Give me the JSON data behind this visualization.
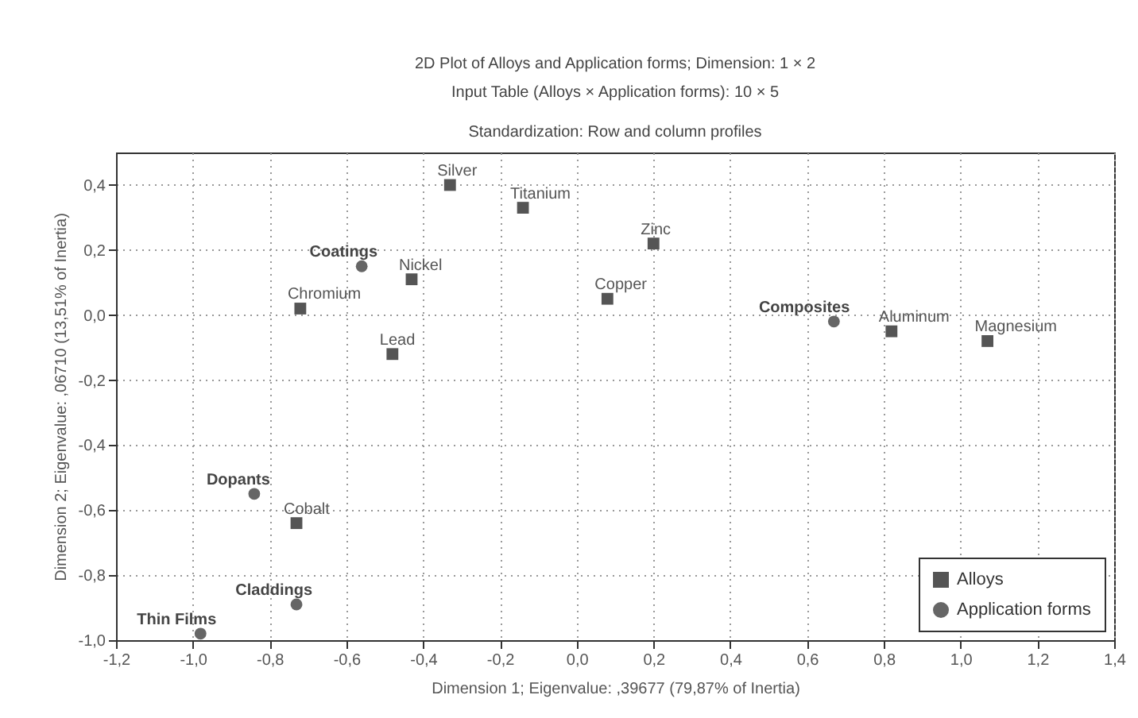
{
  "chart_data": {
    "type": "scatter",
    "title": "2D Plot of Alloys and Application forms; Dimension: 1 × 2",
    "subtitle": "Input Table (Alloys × Application forms): 10 × 5\nStandardization: Row and column profiles",
    "xlabel": "Dimension 1; Eigenvalue: ,39677 (79,87% of Inertia)",
    "ylabel": "Dimension 2; Eigenvalue: ,06710 (13,51% of Inertia)",
    "series": [
      {
        "name": "Alloys",
        "color": "#555555",
        "marker": "square",
        "x": [
          -0.33,
          -0.14,
          0.2,
          -0.43,
          -0.72,
          0.08,
          -0.48,
          0.82,
          1.07,
          -0.73
        ],
        "values": [
          0.4,
          0.33,
          0.22,
          0.11,
          0.02,
          0.05,
          -0.12,
          -0.05,
          -0.08,
          -0.64
        ]
      },
      {
        "name": "Application forms",
        "color": "#666666",
        "marker": "circle",
        "x": [
          -0.56,
          0.67,
          -0.84,
          -0.73,
          -0.98
        ],
        "values": [
          0.15,
          -0.02,
          -0.55,
          -0.89,
          -0.98
        ]
      }
    ],
    "annotations": [
      {
        "text": "Silver",
        "x": -0.33,
        "y": 0.4
      },
      {
        "text": "Titanium",
        "x": -0.14,
        "y": 0.33
      },
      {
        "text": "Zinc",
        "x": 0.2,
        "y": 0.22
      },
      {
        "text": "Nickel",
        "x": -0.43,
        "y": 0.11
      },
      {
        "text": "Chromium",
        "x": -0.72,
        "y": 0.02
      },
      {
        "text": "Copper",
        "x": 0.08,
        "y": 0.05
      },
      {
        "text": "Lead",
        "x": -0.48,
        "y": -0.12
      },
      {
        "text": "Aluminum",
        "x": 0.82,
        "y": -0.05
      },
      {
        "text": "Magnesium",
        "x": 1.07,
        "y": -0.08
      },
      {
        "text": "Cobalt",
        "x": -0.73,
        "y": -0.64
      },
      {
        "text": "Coatings",
        "x": -0.56,
        "y": 0.15
      },
      {
        "text": "Composites",
        "x": 0.67,
        "y": -0.02
      },
      {
        "text": "Dopants",
        "x": -0.84,
        "y": -0.55
      },
      {
        "text": "Claddings",
        "x": -0.73,
        "y": -0.89
      },
      {
        "text": "Thin Films",
        "x": -0.98,
        "y": -0.98
      }
    ],
    "xlim": [
      -1.2,
      1.4
    ],
    "xticks": [
      {
        "value": -1.2,
        "label": "-1,2"
      },
      {
        "value": -1.0,
        "label": "-1,0"
      },
      {
        "value": -0.8,
        "label": "-0,8"
      },
      {
        "value": -0.6,
        "label": "-0,6"
      },
      {
        "value": -0.4,
        "label": "-0,4"
      },
      {
        "value": -0.2,
        "label": "-0,2"
      },
      {
        "value": 0,
        "label": "0,0"
      },
      {
        "value": 0.2,
        "label": "0,2"
      },
      {
        "value": 0.4,
        "label": "0,4"
      },
      {
        "value": 0.6,
        "label": "0,6"
      },
      {
        "value": 0.8,
        "label": "0,8"
      },
      {
        "value": 1.0,
        "label": "1,0"
      },
      {
        "value": 1.2,
        "label": "1,2"
      },
      {
        "value": 1.4,
        "label": "1,4"
      }
    ],
    "ylim": [
      -1.0,
      0.5
    ],
    "yticks": [
      {
        "value": -1.0,
        "label": "-1,0"
      },
      {
        "value": -0.8,
        "label": "-0,8"
      },
      {
        "value": -0.6,
        "label": "-0,6"
      },
      {
        "value": -0.4,
        "label": "-0,4"
      },
      {
        "value": -0.2,
        "label": "-0,2"
      },
      {
        "value": 0,
        "label": "0,0"
      },
      {
        "value": 0.2,
        "label": "0,2"
      },
      {
        "value": 0.4,
        "label": "0,4"
      }
    ],
    "grid": true,
    "legend": "bottom right"
  }
}
